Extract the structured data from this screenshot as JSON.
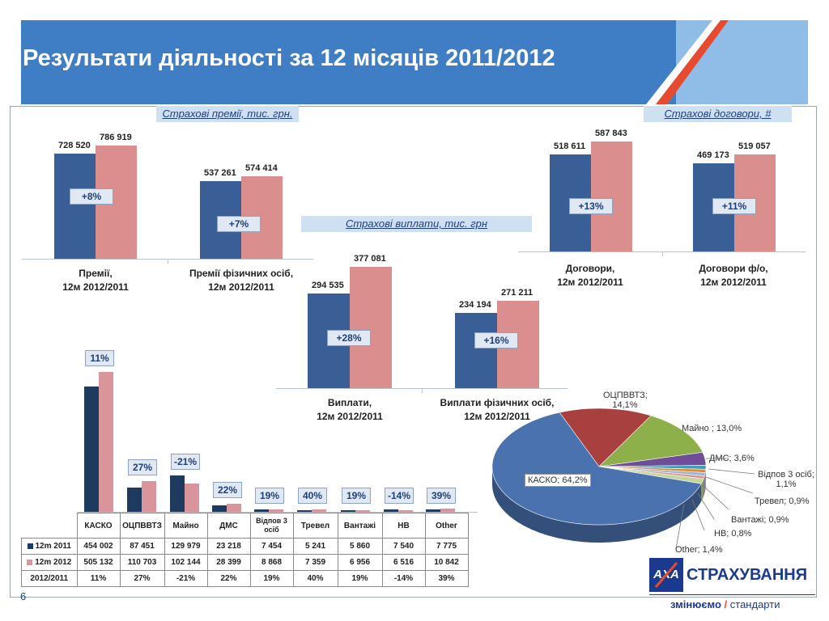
{
  "title": "Результати діяльності за 12 місяців 2011/2012",
  "page_number": "6",
  "colors": {
    "banner": "#3f7dc4",
    "accent_red": "#e64a2f",
    "bar_2011": "#3a5f97",
    "bar_2012": "#db8e8e"
  },
  "brand": {
    "logo_text": "AXA",
    "name": "СТРАХУВАННЯ",
    "slogan_bold": "змінюємо",
    "slogan_rest": "стандарти"
  },
  "chart_data": [
    {
      "type": "bar",
      "section_title": "Страхові премії, тис. грн.",
      "categories": [
        "Премії, 12м 2012/2011",
        "Премії фізичних осіб, 12м 2012/2011"
      ],
      "category_lines": [
        [
          "Премії,",
          "12м 2012/2011"
        ],
        [
          "Премії фізичних осіб,",
          "12м 2012/2011"
        ]
      ],
      "series": [
        {
          "values": [
            728520,
            537261
          ]
        },
        {
          "values": [
            786919,
            574414
          ]
        }
      ],
      "value_labels": [
        [
          "728 520",
          "537 261"
        ],
        [
          "786 919",
          "574 414"
        ]
      ],
      "growth": [
        "+8%",
        "+7%"
      ]
    },
    {
      "type": "bar",
      "section_title": "Страхові виплати, тис. грн",
      "categories": [
        "Виплати, 12м 2012/2011",
        "Виплати фізичних осіб, 12м 2012/2011"
      ],
      "category_lines": [
        [
          "Виплати,",
          "12м 2012/2011"
        ],
        [
          "Виплати фізичних осіб,",
          "12м 2012/2011"
        ]
      ],
      "series": [
        {
          "values": [
            294535,
            234194
          ]
        },
        {
          "values": [
            377081,
            271211
          ]
        }
      ],
      "value_labels": [
        [
          "294 535",
          "234 194"
        ],
        [
          "377 081",
          "271 211"
        ]
      ],
      "growth": [
        "+28%",
        "+16%"
      ]
    },
    {
      "type": "bar",
      "section_title": "Страхові договори, #",
      "categories": [
        "Договори, 12м 2012/2011",
        "Договори ф/о, 12м 2012/2011"
      ],
      "category_lines": [
        [
          "Договори,",
          "12м 2012/2011"
        ],
        [
          "Договори ф/о,",
          "12м 2012/2011"
        ]
      ],
      "series": [
        {
          "values": [
            518611,
            469173
          ]
        },
        {
          "values": [
            587843,
            519057
          ]
        }
      ],
      "value_labels": [
        [
          "518 611",
          "469 173"
        ],
        [
          "587 843",
          "519 057"
        ]
      ],
      "growth": [
        "+13%",
        "+11%"
      ]
    },
    {
      "type": "bar",
      "categories": [
        "КАСКО",
        "ОЦПВВТЗ",
        "Майно",
        "ДМС",
        "Відпов 3 осіб",
        "Тревел",
        "Вантажі",
        "НВ",
        "Other"
      ],
      "series": [
        {
          "name": "12m 2011",
          "values": [
            454002,
            87451,
            129979,
            23218,
            7454,
            5241,
            5860,
            7540,
            7775
          ],
          "labels": [
            "454 002",
            "87 451",
            "129 979",
            "23 218",
            "7 454",
            "5 241",
            "5 860",
            "7 540",
            "7 775"
          ]
        },
        {
          "name": "12m 2012",
          "values": [
            505132,
            110703,
            102144,
            28399,
            8868,
            7359,
            6956,
            6516,
            10842
          ],
          "labels": [
            "505 132",
            "110 703",
            "102 144",
            "28 399",
            "8 868",
            "7 359",
            "6 956",
            "6 516",
            "10 842"
          ]
        }
      ],
      "change_row_label": "2012/2011",
      "change": [
        "11%",
        "27%",
        "-21%",
        "22%",
        "19%",
        "40%",
        "19%",
        "-14%",
        "39%"
      ]
    },
    {
      "type": "pie",
      "slices": [
        {
          "label": "КАСКО",
          "value": 64.2,
          "display": "64,2%",
          "color": "#4a72ae"
        },
        {
          "label": "ОЦПВВТЗ",
          "value": 14.1,
          "display": "14,1%",
          "color": "#a84040"
        },
        {
          "label": "Майно",
          "value": 13.0,
          "display": "13,0%",
          "color": "#8db04a"
        },
        {
          "label": "ДМС",
          "value": 3.6,
          "display": "3,6%",
          "color": "#6f4d98"
        },
        {
          "label": "Відпов 3 осіб",
          "value": 1.1,
          "display": "1,1%",
          "color": "#3da0b8"
        },
        {
          "label": "Тревел",
          "value": 0.9,
          "display": "0,9%",
          "color": "#e08a2e"
        },
        {
          "label": "Вантажі",
          "value": 0.9,
          "display": "0,9%",
          "color": "#9bb3d6"
        },
        {
          "label": "НВ",
          "value": 0.8,
          "display": "0,8%",
          "color": "#d99594"
        },
        {
          "label": "Other",
          "value": 1.4,
          "display": "1,4%",
          "color": "#c3d69b"
        }
      ],
      "label_texts": [
        "КАСКО; 64,2%",
        "ОЦПВВТЗ;",
        "14,1%",
        "Майно ; 13,0%",
        "ДМС; 3,6%",
        "Відпов 3 осіб;",
        "1,1%",
        "Тревел; 0,9%",
        "Вантажі; 0,9%",
        "НВ; 0,8%",
        "Other; 1,4%"
      ]
    }
  ]
}
